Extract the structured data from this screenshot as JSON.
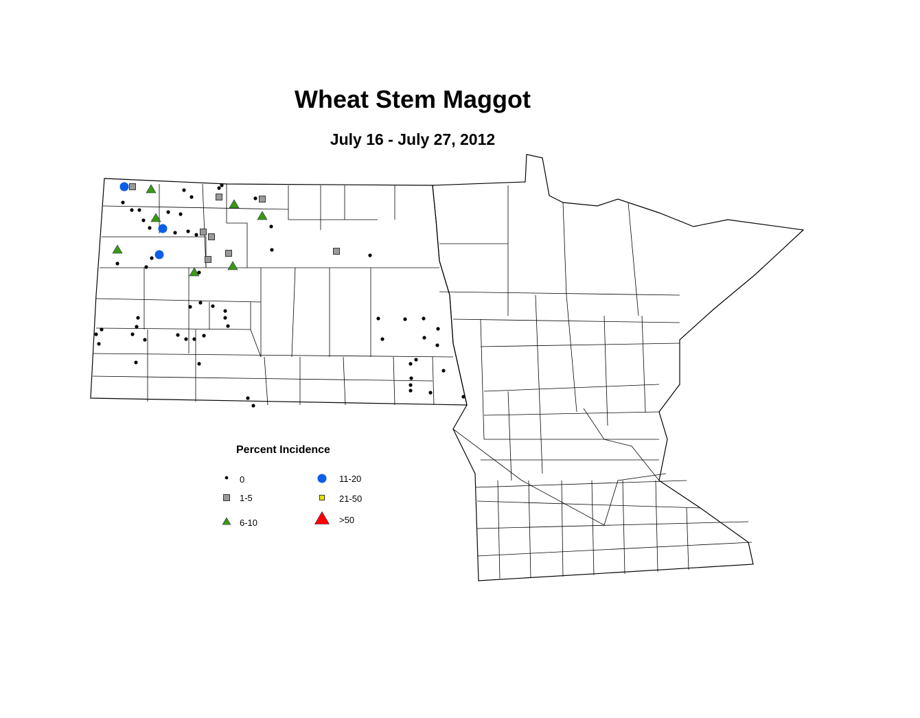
{
  "title": "Wheat Stem Maggot",
  "subtitle": "July 16 - July 27, 2012",
  "legend": {
    "title": "Percent Incidence",
    "items": [
      {
        "label": "0",
        "symbol": "dot",
        "color": "#000000"
      },
      {
        "label": "1-5",
        "symbol": "square",
        "color": "#9a9a9a"
      },
      {
        "label": "6-10",
        "symbol": "triangle",
        "color": "#3a9a10"
      },
      {
        "label": "11-20",
        "symbol": "circle",
        "color": "#0a5ee8"
      },
      {
        "label": "21-50",
        "symbol": "square",
        "color": "#e8e000"
      },
      {
        "label": ">50",
        "symbol": "triangle",
        "color": "#ff0000"
      }
    ]
  }
}
